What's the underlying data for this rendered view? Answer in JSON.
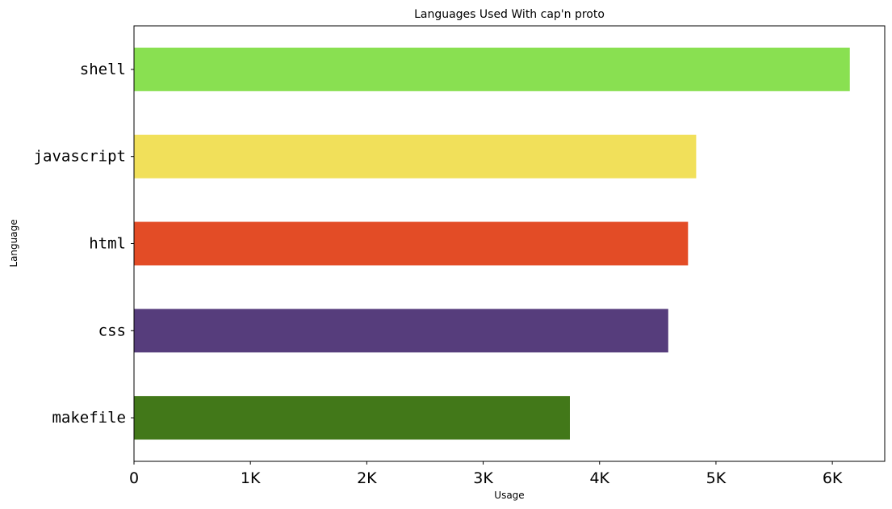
{
  "chart_data": {
    "type": "bar",
    "orientation": "horizontal",
    "title": "Languages Used With cap'n proto",
    "xlabel": "Usage",
    "ylabel": "Language",
    "categories": [
      "shell",
      "javascript",
      "html",
      "css",
      "makefile"
    ],
    "values": [
      6150,
      4830,
      4760,
      4590,
      3745
    ],
    "colors": [
      "#89e051",
      "#f1e05a",
      "#e34c26",
      "#563d7c",
      "#427819"
    ],
    "xlim": [
      0,
      6450
    ],
    "xticks": [
      0,
      1000,
      2000,
      3000,
      4000,
      5000,
      6000
    ],
    "xtick_labels": [
      "0",
      "1K",
      "2K",
      "3K",
      "4K",
      "5K",
      "6K"
    ],
    "grid": false,
    "legend": "none"
  }
}
